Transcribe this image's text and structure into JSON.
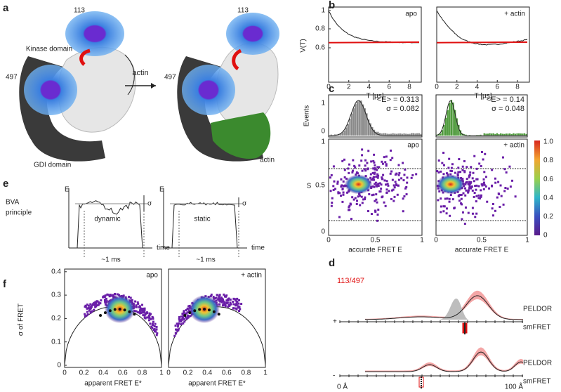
{
  "panel_labels": [
    "a",
    "b",
    "c",
    "d",
    "e",
    "f"
  ],
  "panel_a": {
    "left": {
      "kinase": "Kinase domain",
      "site1": "113",
      "site2": "497",
      "gdi": "GDI domain"
    },
    "arrow": "actin",
    "right": {
      "site1": "113",
      "site2": "497",
      "actin": "actin"
    }
  },
  "panel_b": {
    "y_label": "V(T)",
    "y_ticks": [
      "1",
      "0.8",
      "0.6"
    ],
    "plots": [
      {
        "tag": "apo",
        "x_ticks": [
          "0",
          "2",
          "4",
          "6",
          "8"
        ],
        "x_label": "T [µs]"
      },
      {
        "tag": "+ actin",
        "x_ticks": [
          "0",
          "2",
          "4",
          "6",
          "8"
        ],
        "x_label": "T [µs]"
      }
    ]
  },
  "panel_c": {
    "hist_y_label": "Events",
    "hist_y_ticks": [
      "1",
      "0"
    ],
    "y_label": "S",
    "y_ticks": [
      "1",
      "0.5",
      "0"
    ],
    "plots": [
      {
        "mean": "<E> = 0.313",
        "sigma": "σ = 0.082",
        "tag": "apo",
        "x_ticks": [
          "0",
          "0.5",
          "1"
        ],
        "x_label": "accurate FRET E"
      },
      {
        "mean": "<E> = 0.14",
        "sigma": "σ = 0.048",
        "tag": "+ actin",
        "x_ticks": [
          "0",
          "0.5",
          "1"
        ],
        "x_label": "accurate FRET E"
      }
    ],
    "colorbar_ticks": [
      "1.0",
      "0.8",
      "0.6",
      "0.4",
      "0.2",
      "0"
    ]
  },
  "panel_e": {
    "title": [
      "BVA",
      "principle"
    ],
    "boxes": [
      {
        "y": "E",
        "sigma": "σ",
        "label": "dynamic",
        "duration": "~1 ms",
        "x": "time"
      },
      {
        "y": "E",
        "sigma": "σ",
        "label": "static",
        "duration": "~1 ms",
        "x": "time"
      }
    ]
  },
  "panel_f": {
    "y_label": "σ of FRET",
    "y_ticks": [
      "0.4",
      "0.3",
      "0.2",
      "0.1",
      "0"
    ],
    "plots": [
      {
        "tag": "apo",
        "x_ticks": [
          "0",
          "0.2",
          "0.4",
          "0.6",
          "0.8",
          "1"
        ],
        "x_label": "apparent FRET E*"
      },
      {
        "tag": "+ actin",
        "x_ticks": [
          "0",
          "0.2",
          "0.4",
          "0.6",
          "0.8",
          "1"
        ],
        "x_label": "apparent FRET E*"
      }
    ]
  },
  "panel_d": {
    "pair": "113/497",
    "rows": [
      {
        "sign": "+",
        "top": "PELDOR",
        "bottom": "smFRET"
      },
      {
        "sign": "-",
        "top": "PELDOR",
        "bottom": "smFRET"
      }
    ],
    "axis_start": "0 Å",
    "axis_end": "100 Å"
  }
}
